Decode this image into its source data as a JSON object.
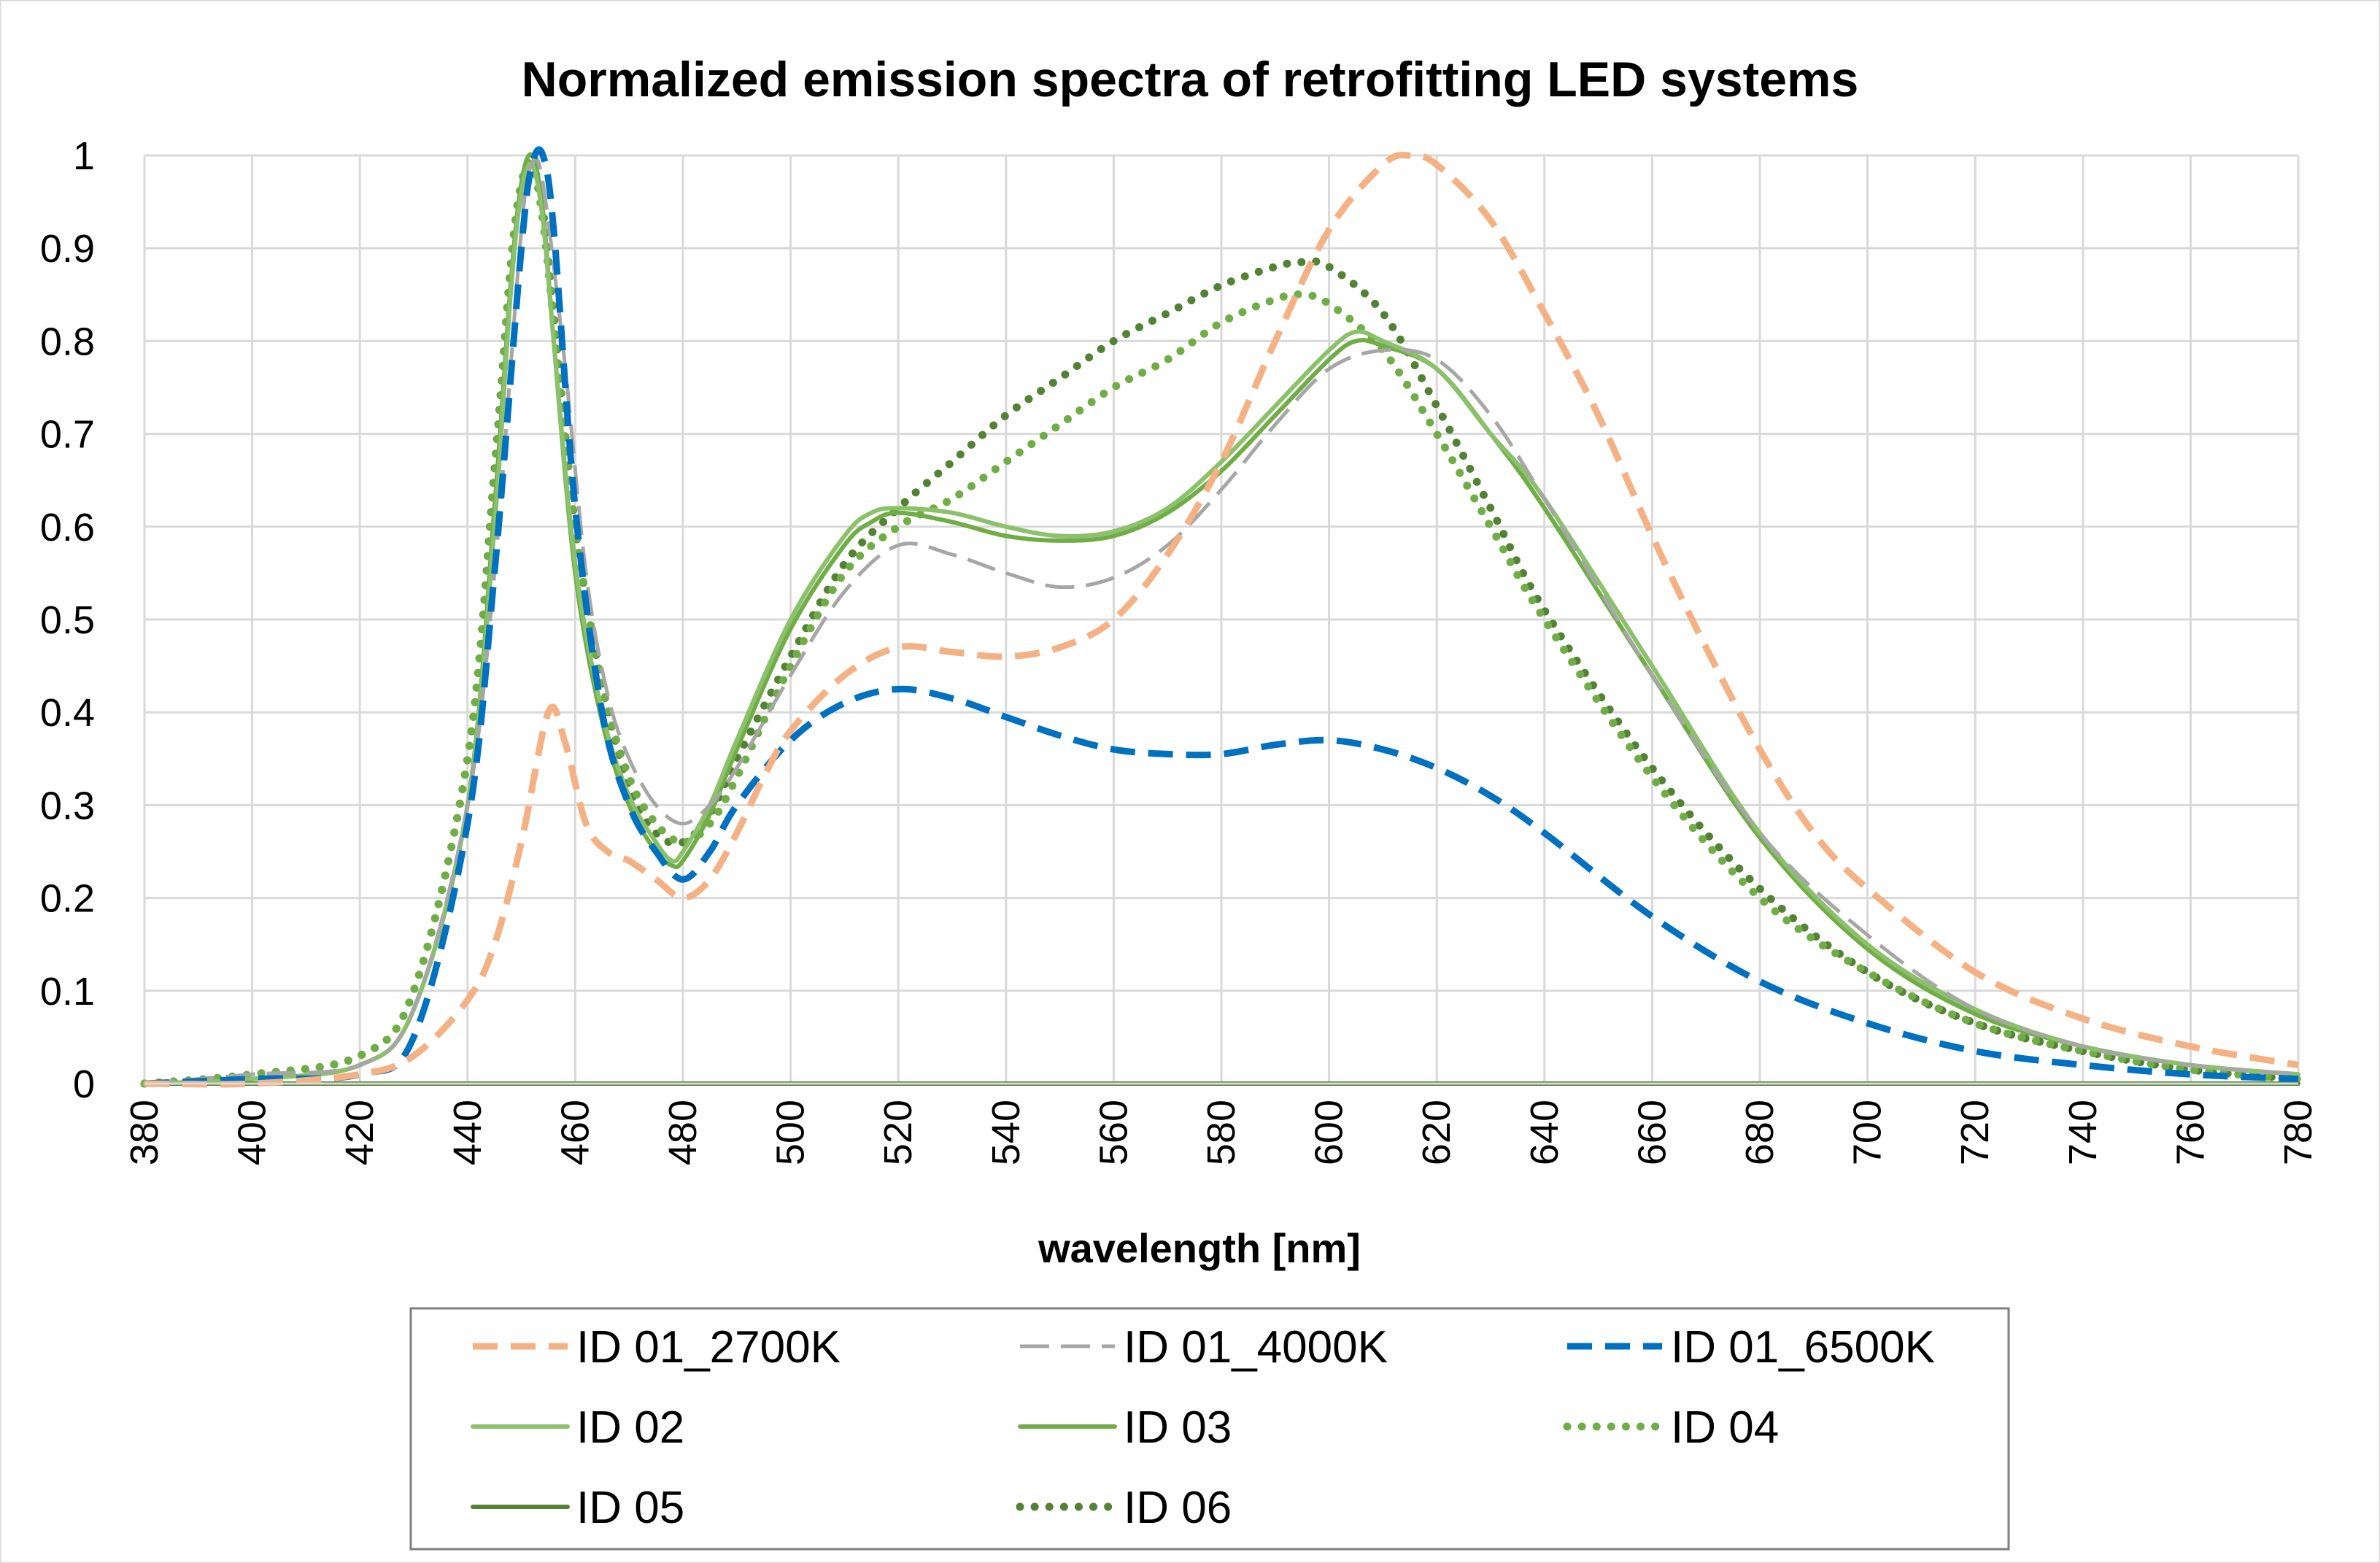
{
  "chart_data": {
    "type": "line",
    "title": "Normalized emission spectra of retrofitting LED systems",
    "xlabel": "wavelength  [nm]",
    "ylabel": "",
    "xlim": [
      380,
      780
    ],
    "ylim": [
      0,
      1
    ],
    "grid": true,
    "legend_position": "bottom",
    "x_ticks": [
      380,
      400,
      420,
      440,
      460,
      480,
      500,
      520,
      540,
      560,
      580,
      600,
      620,
      640,
      660,
      680,
      700,
      720,
      740,
      760,
      780
    ],
    "y_ticks": [
      0,
      0.1,
      0.2,
      0.3,
      0.4,
      0.5,
      0.6,
      0.7,
      0.8,
      0.9,
      1
    ],
    "y_tick_labels": [
      "0",
      "0.1",
      "0.2",
      "0.3",
      "0.4",
      "0.5",
      "0.6",
      "0.7",
      "0.8",
      "0.9",
      "1"
    ],
    "series": [
      {
        "name": "ID 01_2700K",
        "color": "#f4b183",
        "style": "dash",
        "x": [
          380,
          400,
          420,
          430,
          440,
          445,
          450,
          455,
          458,
          462,
          466,
          470,
          475,
          480,
          485,
          490,
          495,
          500,
          510,
          520,
          530,
          540,
          550,
          560,
          570,
          580,
          590,
          600,
          610,
          615,
          620,
          630,
          640,
          650,
          660,
          670,
          680,
          690,
          700,
          720,
          740,
          760,
          780
        ],
        "values": [
          0,
          0,
          0.01,
          0.03,
          0.09,
          0.15,
          0.26,
          0.4,
          0.37,
          0.28,
          0.25,
          0.24,
          0.22,
          0.2,
          0.22,
          0.27,
          0.33,
          0.38,
          0.44,
          0.47,
          0.465,
          0.46,
          0.47,
          0.5,
          0.57,
          0.67,
          0.8,
          0.92,
          0.99,
          1.0,
          0.99,
          0.93,
          0.83,
          0.72,
          0.59,
          0.47,
          0.36,
          0.27,
          0.21,
          0.12,
          0.07,
          0.04,
          0.02
        ]
      },
      {
        "name": "ID 01_4000K",
        "color": "#a6a6a6",
        "style": "longdash",
        "x": [
          380,
          400,
          420,
          430,
          440,
          445,
          450,
          452,
          454,
          458,
          462,
          466,
          470,
          475,
          480,
          485,
          490,
          500,
          510,
          520,
          530,
          540,
          550,
          560,
          570,
          580,
          590,
          600,
          610,
          620,
          630,
          640,
          660,
          680,
          700,
          720,
          740,
          760,
          780
        ],
        "values": [
          0,
          0.01,
          0.02,
          0.08,
          0.3,
          0.55,
          0.92,
          0.99,
          0.97,
          0.78,
          0.55,
          0.42,
          0.35,
          0.3,
          0.28,
          0.3,
          0.34,
          0.44,
          0.53,
          0.58,
          0.57,
          0.55,
          0.535,
          0.545,
          0.58,
          0.64,
          0.71,
          0.77,
          0.79,
          0.78,
          0.72,
          0.63,
          0.44,
          0.27,
          0.16,
          0.08,
          0.04,
          0.02,
          0.01
        ]
      },
      {
        "name": "ID 01_6500K",
        "color": "#0070c0",
        "style": "dash",
        "x": [
          380,
          400,
          420,
          430,
          440,
          445,
          450,
          452,
          454,
          456,
          460,
          465,
          470,
          475,
          480,
          485,
          490,
          500,
          510,
          520,
          530,
          540,
          550,
          560,
          570,
          580,
          590,
          600,
          610,
          620,
          630,
          640,
          660,
          680,
          700,
          720,
          740,
          760,
          780
        ],
        "values": [
          0,
          0.005,
          0.01,
          0.05,
          0.28,
          0.55,
          0.9,
          0.99,
          1.0,
          0.92,
          0.62,
          0.4,
          0.3,
          0.25,
          0.22,
          0.25,
          0.3,
          0.37,
          0.41,
          0.425,
          0.415,
          0.395,
          0.375,
          0.36,
          0.355,
          0.355,
          0.365,
          0.37,
          0.36,
          0.34,
          0.31,
          0.27,
          0.18,
          0.11,
          0.065,
          0.035,
          0.02,
          0.01,
          0.005
        ]
      },
      {
        "name": "ID 02",
        "color": "#8bc16b",
        "style": "solid",
        "x": [
          380,
          400,
          420,
          430,
          440,
          445,
          448,
          450,
          452,
          454,
          456,
          460,
          465,
          470,
          475,
          478,
          480,
          485,
          490,
          500,
          510,
          515,
          520,
          530,
          540,
          550,
          560,
          570,
          580,
          590,
          600,
          605,
          610,
          620,
          630,
          640,
          660,
          680,
          700,
          720,
          740,
          760,
          780
        ],
        "values": [
          0,
          0.005,
          0.02,
          0.08,
          0.3,
          0.6,
          0.85,
          0.96,
          0.99,
          0.93,
          0.8,
          0.56,
          0.4,
          0.31,
          0.26,
          0.24,
          0.25,
          0.3,
          0.37,
          0.5,
          0.59,
          0.615,
          0.62,
          0.615,
          0.6,
          0.59,
          0.595,
          0.62,
          0.67,
          0.73,
          0.79,
          0.81,
          0.8,
          0.77,
          0.7,
          0.63,
          0.45,
          0.27,
          0.15,
          0.08,
          0.04,
          0.02,
          0.01
        ]
      },
      {
        "name": "ID 03",
        "color": "#70ad47",
        "style": "solid",
        "x": [
          380,
          400,
          420,
          430,
          440,
          445,
          448,
          450,
          452,
          454,
          456,
          460,
          465,
          470,
          475,
          478,
          480,
          485,
          490,
          500,
          510,
          515,
          520,
          530,
          540,
          550,
          560,
          570,
          580,
          590,
          600,
          605,
          610,
          620,
          630,
          640,
          660,
          680,
          700,
          720,
          740,
          760,
          780
        ],
        "values": [
          0,
          0.005,
          0.02,
          0.08,
          0.3,
          0.62,
          0.86,
          0.97,
          1.0,
          0.94,
          0.8,
          0.55,
          0.39,
          0.3,
          0.25,
          0.235,
          0.24,
          0.29,
          0.36,
          0.49,
          0.58,
          0.605,
          0.615,
          0.605,
          0.59,
          0.585,
          0.59,
          0.615,
          0.66,
          0.72,
          0.78,
          0.8,
          0.795,
          0.77,
          0.7,
          0.62,
          0.44,
          0.265,
          0.145,
          0.075,
          0.04,
          0.02,
          0.01
        ]
      },
      {
        "name": "ID 04",
        "color": "#70ad47",
        "style": "dot",
        "x": [
          380,
          400,
          420,
          430,
          440,
          445,
          448,
          450,
          452,
          454,
          456,
          460,
          465,
          470,
          475,
          480,
          485,
          490,
          500,
          510,
          520,
          530,
          540,
          550,
          560,
          570,
          580,
          590,
          595,
          600,
          610,
          620,
          630,
          640,
          660,
          680,
          700,
          720,
          740,
          760,
          780
        ],
        "values": [
          0,
          0.01,
          0.03,
          0.1,
          0.35,
          0.65,
          0.88,
          0.97,
          0.99,
          0.93,
          0.82,
          0.6,
          0.43,
          0.33,
          0.28,
          0.26,
          0.28,
          0.33,
          0.45,
          0.55,
          0.6,
          0.63,
          0.67,
          0.71,
          0.75,
          0.78,
          0.82,
          0.845,
          0.85,
          0.84,
          0.79,
          0.7,
          0.6,
          0.5,
          0.33,
          0.2,
          0.12,
          0.065,
          0.035,
          0.015,
          0.005
        ]
      },
      {
        "name": "ID 05",
        "color": "#548235",
        "style": "solid",
        "x": [
          380,
          780
        ],
        "values": [
          0,
          0
        ]
      },
      {
        "name": "ID 06",
        "color": "#548235",
        "style": "dot",
        "x": [
          380,
          400,
          420,
          430,
          440,
          445,
          448,
          450,
          452,
          454,
          456,
          460,
          465,
          470,
          475,
          480,
          485,
          490,
          500,
          510,
          520,
          530,
          540,
          550,
          560,
          570,
          580,
          590,
          595,
          600,
          610,
          620,
          630,
          640,
          660,
          680,
          700,
          720,
          740,
          760,
          780
        ],
        "values": [
          0,
          0.01,
          0.03,
          0.1,
          0.35,
          0.66,
          0.88,
          0.97,
          0.99,
          0.94,
          0.83,
          0.6,
          0.43,
          0.32,
          0.27,
          0.26,
          0.29,
          0.35,
          0.46,
          0.56,
          0.62,
          0.67,
          0.72,
          0.76,
          0.8,
          0.83,
          0.86,
          0.88,
          0.885,
          0.88,
          0.83,
          0.73,
          0.62,
          0.51,
          0.34,
          0.21,
          0.12,
          0.065,
          0.035,
          0.015,
          0.005
        ]
      }
    ]
  }
}
